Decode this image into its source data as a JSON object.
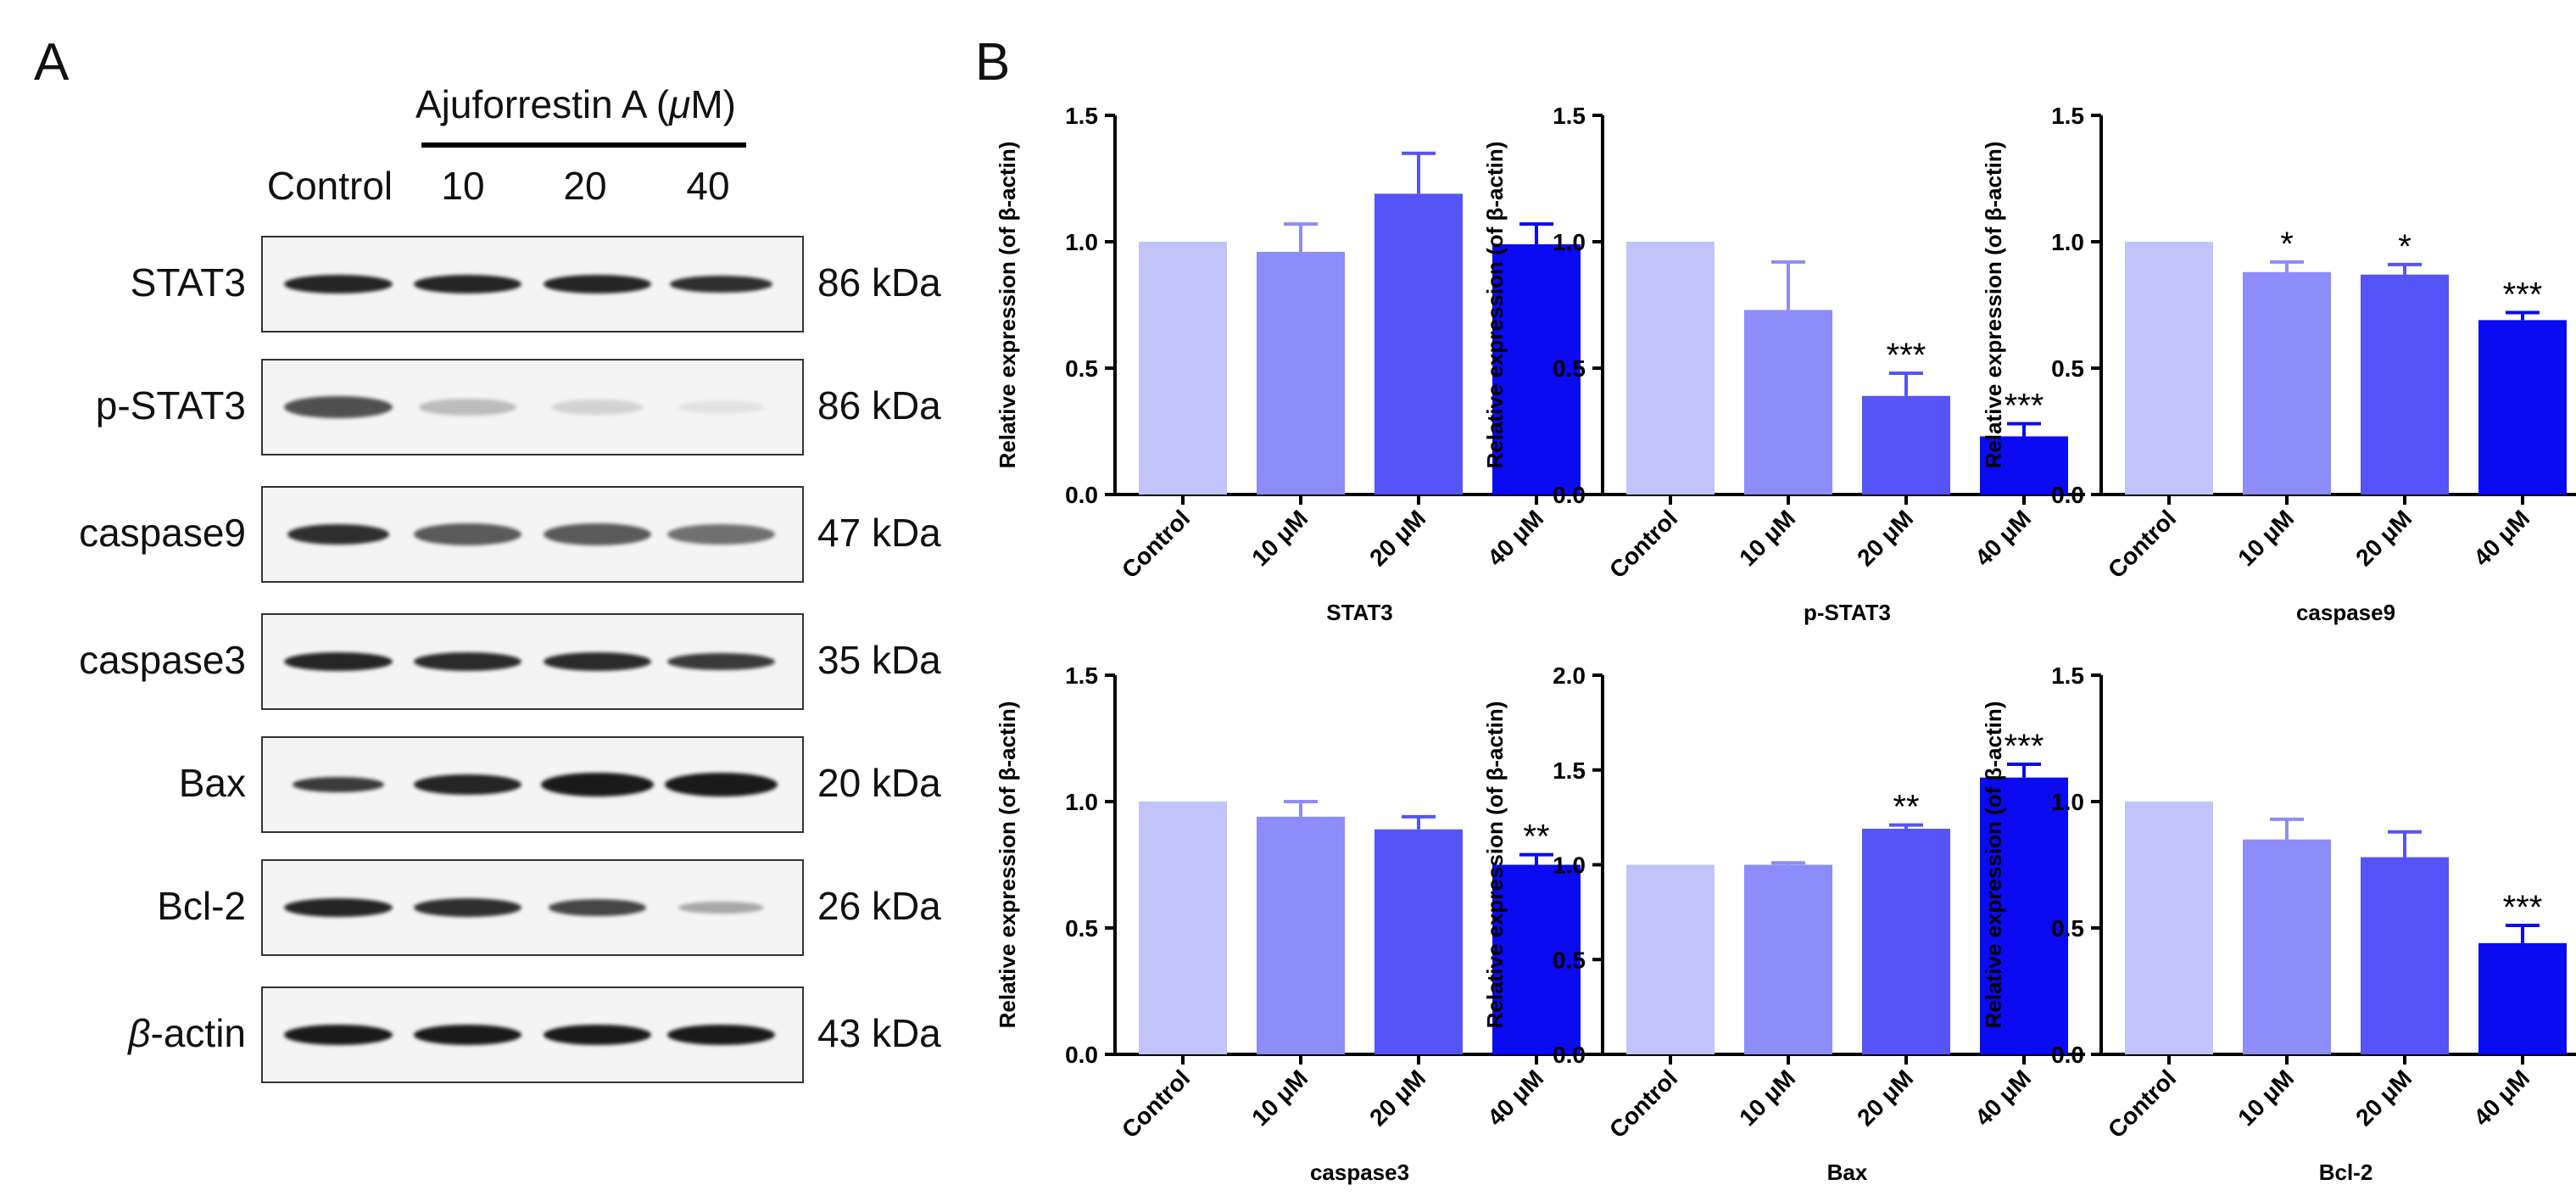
{
  "panel_a": {
    "letter": "A",
    "treatment_label": "Ajuforrestin A (",
    "treatment_unit_mu": "μ",
    "treatment_unit_rest": "M)",
    "lanes": [
      "Control",
      "10",
      "20",
      "40"
    ],
    "blots": [
      {
        "protein": "STAT3",
        "kda": "86 kDa"
      },
      {
        "protein": "p-STAT3",
        "kda": "86 kDa"
      },
      {
        "protein": "caspase9",
        "kda": "47 kDa"
      },
      {
        "protein": "caspase3",
        "kda": "35 kDa"
      },
      {
        "protein": "Bax",
        "kda": "20 kDa"
      },
      {
        "protein": "Bcl-2",
        "kda": "26 kDa"
      },
      {
        "protein_prefix": "β",
        "protein": "-actin",
        "kda": "43 kDa"
      }
    ]
  },
  "panel_b": {
    "letter": "B"
  },
  "colors": {
    "bars": [
      "#c3c3fb",
      "#8c8cfa",
      "#5454f8",
      "#0a0af3"
    ],
    "band": "#1a1a1a"
  },
  "chart_data": [
    {
      "type": "bar",
      "title": "STAT3",
      "xlabel": "STAT3",
      "ylabel": "Relative expression (of β-actin)",
      "categories": [
        "Control",
        "10 μM",
        "20 μM",
        "40 μM"
      ],
      "values": [
        1.0,
        0.96,
        1.19,
        0.99
      ],
      "errors": [
        0,
        0.11,
        0.16,
        0.08
      ],
      "significance": [
        "",
        "",
        "",
        ""
      ],
      "ylim": [
        0,
        1.5
      ],
      "yticks": [
        "0.0",
        "0.5",
        "1.0",
        "1.5"
      ]
    },
    {
      "type": "bar",
      "title": "p-STAT3",
      "xlabel": "p-STAT3",
      "ylabel": "Relative expression (of β-actin)",
      "categories": [
        "Control",
        "10 μM",
        "20 μM",
        "40 μM"
      ],
      "values": [
        1.0,
        0.73,
        0.39,
        0.23
      ],
      "errors": [
        0,
        0.19,
        0.09,
        0.05
      ],
      "significance": [
        "",
        "",
        "***",
        "***"
      ],
      "ylim": [
        0,
        1.5
      ],
      "yticks": [
        "0.0",
        "0.5",
        "1.0",
        "1.5"
      ]
    },
    {
      "type": "bar",
      "title": "caspase9",
      "xlabel": "caspase9",
      "ylabel": "Relative expression (of β-actin)",
      "categories": [
        "Control",
        "10 μM",
        "20 μM",
        "40 μM"
      ],
      "values": [
        1.0,
        0.88,
        0.87,
        0.69
      ],
      "errors": [
        0,
        0.04,
        0.04,
        0.03
      ],
      "significance": [
        "",
        "*",
        "*",
        "***"
      ],
      "ylim": [
        0,
        1.5
      ],
      "yticks": [
        "0.0",
        "0.5",
        "1.0",
        "1.5"
      ]
    },
    {
      "type": "bar",
      "title": "caspase3",
      "xlabel": "caspase3",
      "ylabel": "Relative expression (of β-actin)",
      "categories": [
        "Control",
        "10 μM",
        "20 μM",
        "40 μM"
      ],
      "values": [
        1.0,
        0.94,
        0.89,
        0.75
      ],
      "errors": [
        0,
        0.06,
        0.05,
        0.04
      ],
      "significance": [
        "",
        "",
        "",
        "**"
      ],
      "ylim": [
        0,
        1.5
      ],
      "yticks": [
        "0.0",
        "0.5",
        "1.0",
        "1.5"
      ]
    },
    {
      "type": "bar",
      "title": "Bax",
      "xlabel": "Bax",
      "ylabel": "Relative expression (of β-actin)",
      "categories": [
        "Control",
        "10 μM",
        "20 μM",
        "40 μM"
      ],
      "values": [
        1.0,
        1.0,
        1.19,
        1.46
      ],
      "errors": [
        0,
        0.01,
        0.02,
        0.07
      ],
      "significance": [
        "",
        "",
        "**",
        "***"
      ],
      "ylim": [
        0,
        2.0
      ],
      "yticks": [
        "0.0",
        "0.5",
        "1.0",
        "1.5",
        "2.0"
      ]
    },
    {
      "type": "bar",
      "title": "Bcl-2",
      "xlabel": "Bcl-2",
      "ylabel": "Relative expression (of β-actin)",
      "categories": [
        "Control",
        "10 μM",
        "20 μM",
        "40 μM"
      ],
      "values": [
        1.0,
        0.85,
        0.78,
        0.44
      ],
      "errors": [
        0,
        0.08,
        0.1,
        0.07
      ],
      "significance": [
        "",
        "",
        "",
        "***"
      ],
      "ylim": [
        0,
        1.5
      ],
      "yticks": [
        "0.0",
        "0.5",
        "1.0",
        "1.5"
      ]
    }
  ]
}
